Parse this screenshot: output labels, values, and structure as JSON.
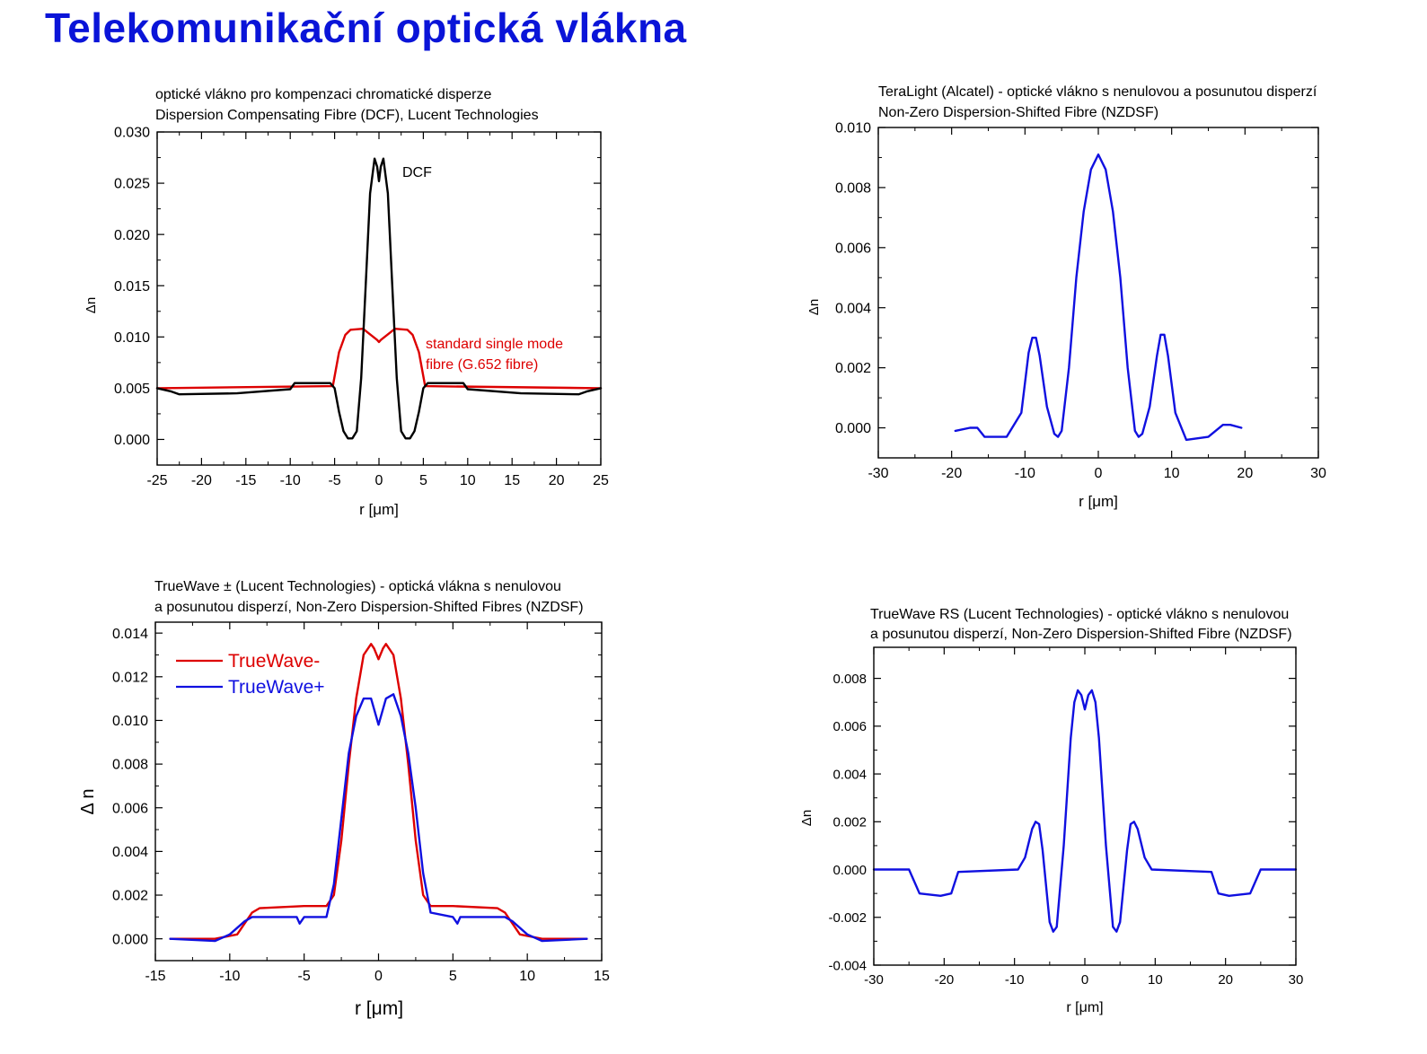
{
  "page": {
    "title": "Telekomunikační optická vlákna"
  },
  "chart_data": [
    {
      "type": "line",
      "title_lines": [
        "optické vlákno pro kompenzaci chromatické disperze",
        "Dispersion Compensating Fibre (DCF), Lucent Technologies"
      ],
      "xlabel": "r [μm]",
      "ylabel": "Δn",
      "xlim": [
        -25,
        25
      ],
      "ylim": [
        -0.0025,
        0.03
      ],
      "xticks": [
        -25,
        -20,
        -15,
        -10,
        -5,
        0,
        5,
        10,
        15,
        20,
        25
      ],
      "yticks": [
        0.0,
        0.005,
        0.01,
        0.015,
        0.02,
        0.025,
        0.03
      ],
      "ytick_decimals": 3,
      "annotations": [
        {
          "text": "DCF",
          "color": "#000000"
        },
        {
          "text": "standard single mode",
          "color": "#dd0000"
        },
        {
          "text": "fibre (G.652 fibre)",
          "color": "#dd0000"
        }
      ],
      "series": [
        {
          "name": "standard single mode fibre (G.652 fibre)",
          "color": "#dd0000",
          "x": [
            -25,
            -5.2,
            -4.5,
            -3.8,
            -3.2,
            -1.8,
            -0.2,
            0,
            0.2,
            1.8,
            3.2,
            3.8,
            4.5,
            5.2,
            25
          ],
          "y": [
            0.005,
            0.0052,
            0.0085,
            0.0102,
            0.0107,
            0.0108,
            0.0097,
            0.0095,
            0.0097,
            0.0108,
            0.0107,
            0.0102,
            0.0085,
            0.0052,
            0.005
          ]
        },
        {
          "name": "DCF",
          "color": "#000000",
          "x": [
            -25,
            -23.5,
            -22.5,
            -16,
            -10,
            -9.5,
            -5.5,
            -5,
            -4.5,
            -4,
            -3.5,
            -3,
            -2.5,
            -2,
            -1.5,
            -1,
            -0.5,
            -0.2,
            0,
            0.2,
            0.5,
            1,
            1.5,
            2,
            2.5,
            3,
            3.5,
            4,
            4.5,
            5,
            5.5,
            9.5,
            10,
            16,
            22.5,
            23.5,
            25
          ],
          "y": [
            0.005,
            0.0047,
            0.0044,
            0.0045,
            0.0049,
            0.0055,
            0.0055,
            0.005,
            0.0027,
            0.0008,
            0.0001,
            0.0001,
            0.0008,
            0.006,
            0.015,
            0.024,
            0.0274,
            0.0266,
            0.0252,
            0.0266,
            0.0274,
            0.024,
            0.015,
            0.006,
            0.0008,
            0.0001,
            0.0001,
            0.0008,
            0.0027,
            0.005,
            0.0055,
            0.0055,
            0.0049,
            0.0045,
            0.0044,
            0.0047,
            0.005
          ]
        }
      ]
    },
    {
      "type": "line",
      "title_lines": [
        "TeraLight (Alcatel) - optické vlákno s nenulovou a posunutou disperzí",
        "Non-Zero Dispersion-Shifted Fibre (NZDSF)"
      ],
      "xlabel": "r [μm]",
      "ylabel": "Δn",
      "xlim": [
        -30,
        30
      ],
      "ylim": [
        -0.001,
        0.01
      ],
      "xticks": [
        -30,
        -20,
        -10,
        0,
        10,
        20,
        30
      ],
      "yticks": [
        0.0,
        0.002,
        0.004,
        0.006,
        0.008,
        0.01
      ],
      "ytick_decimals": 3,
      "series": [
        {
          "name": "TeraLight",
          "color": "#1010e0",
          "x": [
            -19.5,
            -17.5,
            -16.5,
            -15.5,
            -12.5,
            -10.5,
            -9.5,
            -9,
            -8.5,
            -8,
            -7,
            -6,
            -5.5,
            -5,
            -4,
            -3,
            -2,
            -1,
            0,
            1,
            2,
            3,
            4,
            5,
            5.5,
            6,
            7,
            8,
            8.5,
            9,
            9.5,
            10.5,
            12,
            15,
            17,
            18,
            19.5
          ],
          "y": [
            -0.0001,
            0.0,
            0.0,
            -0.0003,
            -0.0003,
            0.0005,
            0.0025,
            0.003,
            0.003,
            0.0024,
            0.0007,
            -0.0002,
            -0.0003,
            -0.0001,
            0.002,
            0.005,
            0.0072,
            0.0086,
            0.0091,
            0.0086,
            0.0072,
            0.005,
            0.002,
            -0.0001,
            -0.0003,
            -0.0002,
            0.0007,
            0.0024,
            0.0031,
            0.0031,
            0.0024,
            0.0005,
            -0.0004,
            -0.0003,
            0.0001,
            0.0001,
            0.0
          ]
        }
      ]
    },
    {
      "type": "line",
      "title_lines": [
        "TrueWave ± (Lucent Technologies) - optická vlákna s nenulovou",
        "a posunutou disperzí, Non-Zero Dispersion-Shifted Fibres (NZDSF)"
      ],
      "xlabel": "r [μm]",
      "ylabel": "Δ n",
      "xlim": [
        -15,
        15
      ],
      "ylim": [
        -0.001,
        0.0145
      ],
      "xticks": [
        -15,
        -10,
        -5,
        0,
        5,
        10,
        15
      ],
      "yticks": [
        0.0,
        0.002,
        0.004,
        0.006,
        0.008,
        0.01,
        0.012,
        0.014
      ],
      "ytick_decimals": 3,
      "legend": "top-left",
      "series": [
        {
          "name": "TrueWave-",
          "color": "#dd0000",
          "x": [
            -14,
            -11,
            -9.5,
            -8.5,
            -8,
            -5,
            -3.5,
            -3,
            -2.5,
            -2,
            -1.5,
            -1,
            -0.5,
            -0.3,
            0,
            0.3,
            0.5,
            1,
            1.5,
            2,
            2.5,
            3,
            3.5,
            5,
            8,
            8.5,
            9.5,
            11,
            14
          ],
          "y": [
            0.0,
            0.0,
            0.0002,
            0.0012,
            0.0014,
            0.0015,
            0.0015,
            0.002,
            0.0045,
            0.008,
            0.011,
            0.013,
            0.0135,
            0.0133,
            0.0128,
            0.0133,
            0.0135,
            0.013,
            0.011,
            0.008,
            0.0045,
            0.002,
            0.0015,
            0.0015,
            0.0014,
            0.0012,
            0.0002,
            0.0,
            0.0
          ]
        },
        {
          "name": "TrueWave+",
          "color": "#1010e0",
          "x": [
            -14,
            -11,
            -10,
            -9,
            -8.5,
            -5.5,
            -5.3,
            -5,
            -3.5,
            -3,
            -2.5,
            -2,
            -1.5,
            -1,
            -0.5,
            0,
            0.5,
            1,
            1.5,
            2,
            2.5,
            3,
            3.5,
            5,
            5.3,
            5.5,
            8.5,
            9,
            10,
            11,
            14
          ],
          "y": [
            0.0,
            -0.0001,
            0.0002,
            0.0008,
            0.001,
            0.001,
            0.0007,
            0.001,
            0.001,
            0.0025,
            0.0055,
            0.0085,
            0.0102,
            0.011,
            0.011,
            0.0098,
            0.011,
            0.0112,
            0.0102,
            0.0085,
            0.006,
            0.003,
            0.0012,
            0.001,
            0.0007,
            0.001,
            0.001,
            0.0008,
            0.0002,
            -0.0001,
            0.0
          ]
        }
      ]
    },
    {
      "type": "line",
      "title_lines": [
        "TrueWave RS (Lucent Technologies) - optické vlákno s nenulovou",
        "a posunutou disperzí, Non-Zero Dispersion-Shifted Fibre (NZDSF)"
      ],
      "xlabel": "r [μm]",
      "ylabel": "Δn",
      "xlim": [
        -30,
        30
      ],
      "ylim": [
        -0.004,
        0.0093
      ],
      "xticks": [
        -30,
        -20,
        -10,
        0,
        10,
        20,
        30
      ],
      "yticks": [
        -0.004,
        -0.002,
        0.0,
        0.002,
        0.004,
        0.006,
        0.008
      ],
      "ytick_decimals": 3,
      "series": [
        {
          "name": "TrueWave RS",
          "color": "#1010e0",
          "x": [
            -30,
            -25,
            -23.5,
            -20.5,
            -19,
            -18,
            -9.5,
            -8.5,
            -7.5,
            -7,
            -6.5,
            -6,
            -5,
            -4.5,
            -4,
            -3,
            -2,
            -1.5,
            -1,
            -0.5,
            0,
            0.5,
            1,
            1.5,
            2,
            3,
            4,
            4.5,
            5,
            6,
            6.5,
            7,
            7.5,
            8.5,
            9.5,
            18,
            19,
            20.5,
            23.5,
            25,
            30
          ],
          "y": [
            0.0,
            0.0,
            -0.001,
            -0.0011,
            -0.001,
            -0.0001,
            0.0,
            0.0005,
            0.0017,
            0.002,
            0.0019,
            0.0008,
            -0.0022,
            -0.0026,
            -0.0024,
            0.001,
            0.0055,
            0.007,
            0.0075,
            0.0073,
            0.0067,
            0.0073,
            0.0075,
            0.007,
            0.0055,
            0.001,
            -0.0024,
            -0.0026,
            -0.0022,
            0.0008,
            0.0019,
            0.002,
            0.0017,
            0.0005,
            0.0,
            -0.0001,
            -0.001,
            -0.0011,
            -0.001,
            0.0,
            0.0
          ]
        }
      ]
    }
  ]
}
